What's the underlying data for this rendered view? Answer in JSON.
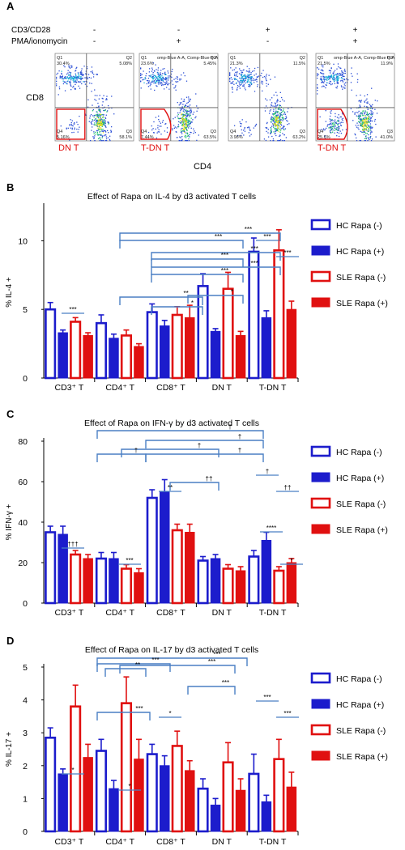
{
  "panelA": {
    "label": "A",
    "cond_labels": [
      "CD3/CD28",
      "PMA/ionomycin"
    ],
    "cond_signs": [
      [
        "-",
        "-",
        "+",
        "+"
      ],
      [
        "-",
        "+",
        "-",
        "+"
      ]
    ],
    "ylabel": "CD8",
    "xlabel": "CD4",
    "plot_header": "omp-Blue A-A, Comp-Blue B-A",
    "gates": [
      "DN T",
      "T-DN T",
      "",
      "T-DN T"
    ],
    "plots": [
      {
        "q1": "Q1",
        "q1v": "30.4%",
        "q2": "Q2",
        "q2v": "5.08%",
        "q3": "Q3",
        "q3v": "58.1%",
        "q4": "Q4",
        "q4v": "5.16%"
      },
      {
        "q1": "Q1",
        "q1v": "23.6%",
        "q2": "Q2",
        "q2v": "5.45%",
        "q3": "Q3",
        "q3v": "63.5%",
        "q4": "Q4",
        "q4v": "7.44%"
      },
      {
        "q1": "Q1",
        "q1v": "21.3%",
        "q2": "Q2",
        "q2v": "11.5%",
        "q3": "Q3",
        "q3v": "63.2%",
        "q4": "Q4",
        "q4v": "3.98%"
      },
      {
        "q1": "Q1",
        "q1v": "21.5%",
        "q2": "Q2",
        "q2v": "11.9%",
        "q3": "Q3",
        "q3v": "41.0%",
        "q4": "Q4",
        "q4v": "25.6%"
      }
    ]
  },
  "legend": [
    {
      "label": "HC Rapa (-)",
      "color": "#1c1ccc",
      "filled": false
    },
    {
      "label": "HC Rapa (+)",
      "color": "#1c1ccc",
      "filled": true
    },
    {
      "label": "SLE Rapa (-)",
      "color": "#e01010",
      "filled": false
    },
    {
      "label": "SLE Rapa (+)",
      "color": "#e01010",
      "filled": true
    }
  ],
  "chart_data": [
    {
      "panel": "B",
      "type": "bar",
      "title": "Effect of Rapa on IL-4 by d3 activated T cells",
      "ylabel": "% IL-4 +",
      "ylim": [
        0,
        12.5
      ],
      "yticks": [
        0,
        5,
        10
      ],
      "categories": [
        "CD3⁺ T",
        "CD4⁺ T",
        "CD8⁺ T",
        "DN T",
        "T-DN T"
      ],
      "series": [
        {
          "name": "HC Rapa (-)",
          "values": [
            5.0,
            4.0,
            4.8,
            6.7,
            9.2
          ],
          "err": [
            0.5,
            0.6,
            0.6,
            0.9,
            1.0
          ]
        },
        {
          "name": "HC Rapa (+)",
          "values": [
            3.3,
            2.9,
            3.8,
            3.4,
            4.4
          ],
          "err": [
            0.2,
            0.3,
            0.4,
            0.2,
            0.5
          ]
        },
        {
          "name": "SLE Rapa (-)",
          "values": [
            4.1,
            3.1,
            4.6,
            6.5,
            9.3
          ],
          "err": [
            0.3,
            0.4,
            0.6,
            1.2,
            1.5
          ]
        },
        {
          "name": "SLE Rapa (+)",
          "values": [
            3.1,
            2.3,
            4.4,
            3.1,
            5.0
          ],
          "err": [
            0.2,
            0.2,
            0.9,
            0.3,
            0.6
          ]
        }
      ],
      "annotations": [
        "***",
        "***",
        "***",
        "***",
        "***",
        "***",
        "**",
        "*",
        "*",
        "***",
        "***",
        "***"
      ]
    },
    {
      "panel": "C",
      "type": "bar",
      "title": "Effect of Rapa on IFN-γ by d3 activated T cells",
      "ylabel": "% IFN-γ +",
      "ylim": [
        0,
        80
      ],
      "yticks": [
        0,
        20,
        40,
        60,
        80
      ],
      "categories": [
        "CD3⁺ T",
        "CD4⁺ T",
        "CD8⁺ T",
        "DN T",
        "T-DN T"
      ],
      "series": [
        {
          "name": "HC Rapa (-)",
          "values": [
            35,
            22,
            52,
            21,
            23
          ],
          "err": [
            3,
            3,
            4,
            2,
            3
          ]
        },
        {
          "name": "HC Rapa (+)",
          "values": [
            34,
            22,
            55,
            22,
            31
          ],
          "err": [
            4,
            3,
            6,
            2,
            4
          ]
        },
        {
          "name": "SLE Rapa (-)",
          "values": [
            24,
            17,
            36,
            17,
            16
          ],
          "err": [
            2,
            2,
            3,
            2,
            2
          ]
        },
        {
          "name": "SLE Rapa (+)",
          "values": [
            22,
            15,
            35,
            16,
            20
          ],
          "err": [
            2,
            2,
            4,
            2,
            2
          ]
        }
      ],
      "annotations": [
        "†",
        "†",
        "†",
        "†",
        "†",
        "††",
        "†",
        "††",
        "†††",
        "***",
        "**",
        "****",
        "*"
      ]
    },
    {
      "panel": "D",
      "type": "bar",
      "title": "Effect of Rapa on IL-17 by d3 activated T cells",
      "ylabel": "% IL-17 +",
      "ylim": [
        0,
        5
      ],
      "yticks": [
        0,
        1,
        2,
        3,
        4,
        5
      ],
      "categories": [
        "CD3⁺ T",
        "CD4⁺ T",
        "CD8⁺ T",
        "DN T",
        "T-DN T"
      ],
      "series": [
        {
          "name": "HC Rapa (-)",
          "values": [
            2.85,
            2.45,
            2.35,
            1.3,
            1.75
          ],
          "err": [
            0.3,
            0.35,
            0.3,
            0.3,
            0.6
          ]
        },
        {
          "name": "HC Rapa (+)",
          "values": [
            1.75,
            1.3,
            2.0,
            0.8,
            0.9
          ],
          "err": [
            0.15,
            0.25,
            0.3,
            0.2,
            0.2
          ]
        },
        {
          "name": "SLE Rapa (-)",
          "values": [
            3.8,
            3.9,
            2.6,
            2.1,
            2.2
          ],
          "err": [
            0.65,
            0.8,
            0.45,
            0.6,
            0.6
          ]
        },
        {
          "name": "SLE Rapa (+)",
          "values": [
            2.25,
            2.2,
            1.85,
            1.25,
            1.35
          ],
          "err": [
            0.4,
            0.6,
            0.3,
            0.35,
            0.45
          ]
        }
      ],
      "annotations": [
        "***",
        "***",
        "**",
        "***",
        "***",
        "***",
        "***",
        "***",
        "*",
        "*",
        "*"
      ]
    }
  ]
}
